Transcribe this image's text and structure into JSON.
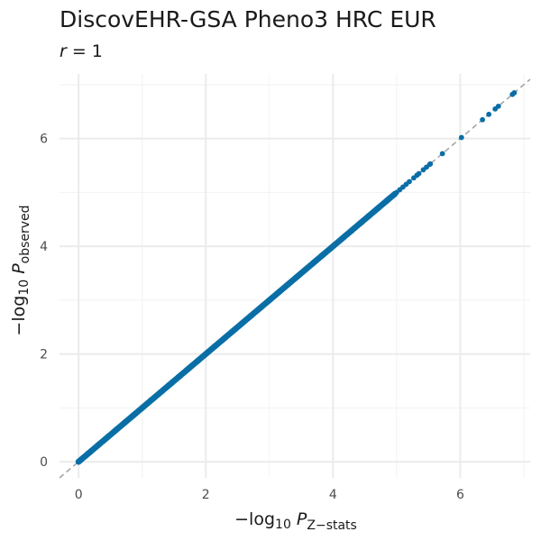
{
  "chart_data": {
    "type": "scatter",
    "title": "DiscovEHR-GSA Pheno3 HRC EUR",
    "subtitle": {
      "variable": "r",
      "text": " = 1"
    },
    "xlabel": {
      "prefix": "−log",
      "base": "10",
      "variable": "P",
      "subscript": "Z−stats"
    },
    "ylabel": {
      "prefix": "−log",
      "base": "10",
      "variable": "P",
      "subscript": "observed"
    },
    "xlim": [
      -0.3,
      7.1
    ],
    "ylim": [
      -0.3,
      7.2
    ],
    "xticks": [
      0,
      2,
      4,
      6
    ],
    "yticks": [
      0,
      2,
      4,
      6
    ],
    "xtick_labels": [
      "0",
      "2",
      "4",
      "6"
    ],
    "ytick_labels": [
      "0",
      "2",
      "4",
      "6"
    ],
    "grid": true,
    "reference_line": {
      "slope": 1,
      "intercept": 0,
      "style": "dashed",
      "color": "#a6a6a6"
    },
    "point_color": "#0a6ea6",
    "dense_range": [
      0,
      4.97
    ],
    "tail_points": [
      {
        "x": 5.0,
        "y": 5.0
      },
      {
        "x": 5.05,
        "y": 5.05
      },
      {
        "x": 5.1,
        "y": 5.1
      },
      {
        "x": 5.15,
        "y": 5.15
      },
      {
        "x": 5.2,
        "y": 5.2
      },
      {
        "x": 5.27,
        "y": 5.27
      },
      {
        "x": 5.32,
        "y": 5.32
      },
      {
        "x": 5.35,
        "y": 5.35
      },
      {
        "x": 5.42,
        "y": 5.42
      },
      {
        "x": 5.47,
        "y": 5.47
      },
      {
        "x": 5.52,
        "y": 5.52
      },
      {
        "x": 5.53,
        "y": 5.53
      },
      {
        "x": 5.72,
        "y": 5.72
      },
      {
        "x": 6.02,
        "y": 6.02
      },
      {
        "x": 6.35,
        "y": 6.35
      },
      {
        "x": 6.45,
        "y": 6.45
      },
      {
        "x": 6.55,
        "y": 6.55
      },
      {
        "x": 6.6,
        "y": 6.6
      },
      {
        "x": 6.82,
        "y": 6.82
      },
      {
        "x": 6.85,
        "y": 6.85
      }
    ]
  }
}
